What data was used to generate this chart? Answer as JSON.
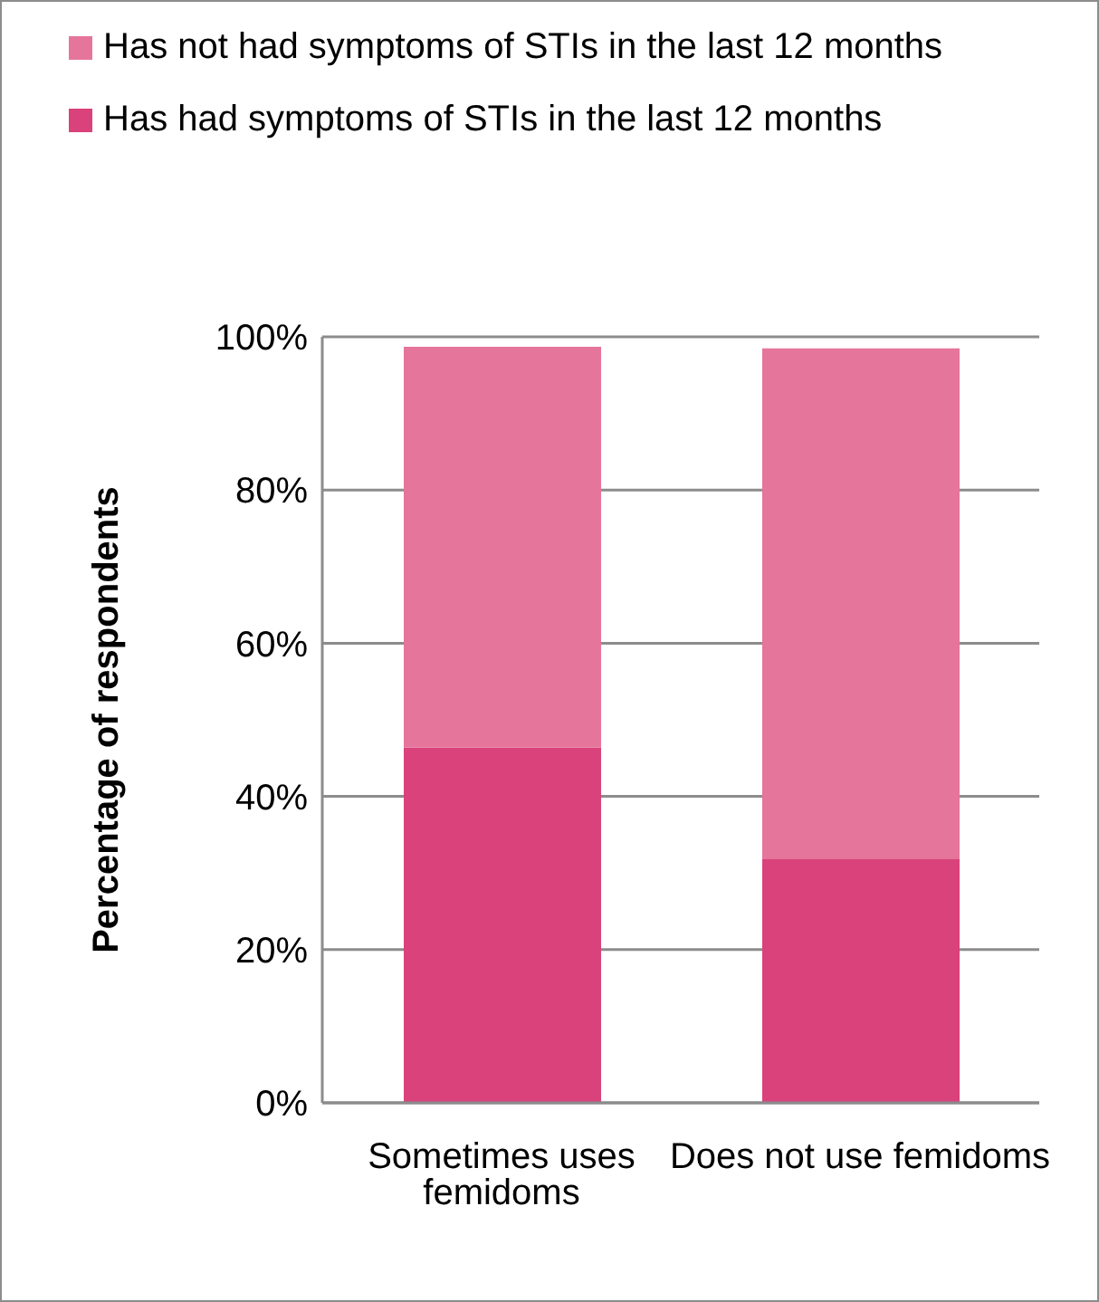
{
  "chart_data": {
    "type": "bar",
    "stacked": true,
    "categories": [
      "Sometimes uses femidoms",
      "Does not use femidoms"
    ],
    "series": [
      {
        "name": "Has had symptoms of STIs in the last 12 months",
        "color": "#d9427a",
        "values": [
          46.4,
          31.9
        ]
      },
      {
        "name": "Has not had symptoms of STIs in the last 12 months",
        "color": "#e5759b",
        "values": [
          52.3,
          66.6
        ]
      }
    ],
    "ylabel": "Percentage of respondents",
    "ylim": [
      0,
      100
    ],
    "yticks": [
      {
        "value": 0,
        "label": "0%"
      },
      {
        "value": 20,
        "label": "20%"
      },
      {
        "value": 40,
        "label": "40%"
      },
      {
        "value": 60,
        "label": "60%"
      },
      {
        "value": 80,
        "label": "80%"
      },
      {
        "value": 100,
        "label": "100%"
      }
    ],
    "grid": "y",
    "legend": "top"
  }
}
